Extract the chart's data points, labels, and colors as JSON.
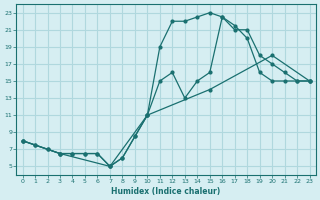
{
  "xlabel": "Humidex (Indice chaleur)",
  "bg_color": "#d6eef2",
  "grid_color": "#b0d8de",
  "line_color": "#1a7070",
  "xlim": [
    -0.5,
    23.5
  ],
  "ylim": [
    4,
    24
  ],
  "yticks": [
    5,
    7,
    9,
    11,
    13,
    15,
    17,
    19,
    21,
    23
  ],
  "xticks": [
    0,
    1,
    2,
    3,
    4,
    5,
    6,
    7,
    8,
    9,
    10,
    11,
    12,
    13,
    14,
    15,
    16,
    17,
    18,
    19,
    20,
    21,
    22,
    23
  ],
  "curve_upper_x": [
    0,
    1,
    2,
    3,
    4,
    5,
    6,
    7,
    8,
    9,
    10,
    11,
    12,
    13,
    14,
    15,
    16,
    17,
    18,
    19,
    20,
    21,
    22,
    23
  ],
  "curve_upper_y": [
    8,
    7.5,
    7,
    6.5,
    6.5,
    6.5,
    6.5,
    5,
    6,
    8.5,
    11,
    19,
    22,
    22,
    22.5,
    23,
    22.5,
    21.5,
    20,
    16,
    15,
    15,
    15,
    15
  ],
  "curve_mid_x": [
    0,
    1,
    2,
    3,
    4,
    5,
    6,
    7,
    8,
    9,
    10,
    11,
    12,
    13,
    14,
    15,
    16,
    17,
    18,
    19,
    20,
    21,
    22,
    23
  ],
  "curve_mid_y": [
    8,
    7.5,
    7,
    6.5,
    6.5,
    6.5,
    6.5,
    5,
    6,
    8.5,
    11,
    15,
    16,
    13,
    15,
    16,
    22.5,
    21,
    21,
    18,
    17,
    16,
    15,
    15
  ],
  "curve_low_x": [
    0,
    3,
    7,
    10,
    15,
    20,
    23
  ],
  "curve_low_y": [
    8,
    6.5,
    5,
    11,
    14,
    18,
    15
  ]
}
